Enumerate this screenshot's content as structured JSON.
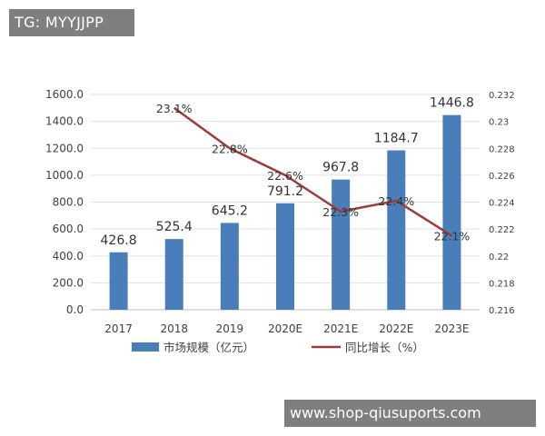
{
  "watermarks": {
    "top": "TG: MYYJJPP",
    "bottom": "www.shop-qiusuports.com"
  },
  "chart_data": {
    "type": "bar",
    "categories": [
      "2017",
      "2018",
      "2019",
      "2020E",
      "2021E",
      "2022E",
      "2023E"
    ],
    "series": [
      {
        "name": "市场规模（亿元）",
        "type": "bar",
        "axis": "left",
        "values": [
          426.8,
          525.4,
          645.2,
          791.2,
          967.8,
          1184.7,
          1446.8
        ],
        "labels": [
          "426.8",
          "525.4",
          "645.2",
          "791.2",
          "967.8",
          "1184.7",
          "1446.8"
        ],
        "color": "#4a7ebb"
      },
      {
        "name": "同比增长（%）",
        "type": "line",
        "axis": "right",
        "values": [
          null,
          0.231,
          0.228,
          0.226,
          0.2233,
          0.2241,
          0.2215
        ],
        "labels": [
          null,
          "23.1%",
          "22.8%",
          "22.6%",
          "22.3%",
          "22.4%",
          "22.1%"
        ],
        "color": "#9e3a3a"
      }
    ],
    "ylim": [
      0,
      1600
    ],
    "yticks": [
      "0.0",
      "200.0",
      "400.0",
      "600.0",
      "800.0",
      "1000.0",
      "1200.0",
      "1400.0",
      "1600.0"
    ],
    "y2lim": [
      0.216,
      0.232
    ],
    "y2ticks": [
      "0.216",
      "0.218",
      "0.22",
      "0.222",
      "0.224",
      "0.226",
      "0.228",
      "0.23",
      "0.232"
    ],
    "legend_position": "bottom",
    "grid": true,
    "legend": {
      "bar_label": "市场规模（亿元）",
      "line_label": "同比增长（%）"
    }
  }
}
